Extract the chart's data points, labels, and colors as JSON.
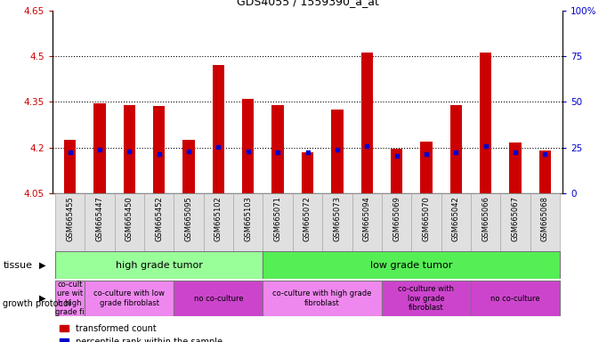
{
  "title": "GDS4055 / 1559390_a_at",
  "samples": [
    "GSM665455",
    "GSM665447",
    "GSM665450",
    "GSM665452",
    "GSM665095",
    "GSM665102",
    "GSM665103",
    "GSM665071",
    "GSM665072",
    "GSM665073",
    "GSM665094",
    "GSM665069",
    "GSM665070",
    "GSM665042",
    "GSM665066",
    "GSM665067",
    "GSM665068"
  ],
  "bar_values": [
    4.225,
    4.345,
    4.34,
    4.335,
    4.225,
    4.47,
    4.36,
    4.34,
    4.185,
    4.325,
    4.51,
    4.195,
    4.22,
    4.34,
    4.51,
    4.215,
    4.19
  ],
  "blue_values": [
    4.185,
    4.192,
    4.186,
    4.177,
    4.186,
    4.202,
    4.186,
    4.183,
    4.183,
    4.192,
    4.205,
    4.172,
    4.178,
    4.183,
    4.205,
    4.183,
    4.178
  ],
  "ymin": 4.05,
  "ymax": 4.65,
  "yticks": [
    4.05,
    4.2,
    4.35,
    4.5,
    4.65
  ],
  "ytick_labels": [
    "4.05",
    "4.2",
    "4.35",
    "4.5",
    "4.65"
  ],
  "right_yticks_pct": [
    0,
    25,
    50,
    75,
    100
  ],
  "right_ytick_labels": [
    "0",
    "25",
    "50",
    "75",
    "100%"
  ],
  "bar_color": "#cc0000",
  "blue_color": "#0000cc",
  "bar_bottom": 4.05,
  "tissue_groups": [
    {
      "label": "high grade tumor",
      "start": 0,
      "end": 6,
      "color": "#99ff99"
    },
    {
      "label": "low grade tumor",
      "start": 7,
      "end": 16,
      "color": "#55ee55"
    }
  ],
  "protocol_groups": [
    {
      "label": "co-cult\nure wit\nh high\ngrade fi",
      "start": 0,
      "end": 0,
      "color": "#ee88ee"
    },
    {
      "label": "co-culture with low\ngrade fibroblast",
      "start": 1,
      "end": 3,
      "color": "#ee88ee"
    },
    {
      "label": "no co-culture",
      "start": 4,
      "end": 6,
      "color": "#cc44cc"
    },
    {
      "label": "co-culture with high grade\nfibroblast",
      "start": 7,
      "end": 10,
      "color": "#ee88ee"
    },
    {
      "label": "co-culture with\nlow grade\nfibroblast",
      "start": 11,
      "end": 13,
      "color": "#cc44cc"
    },
    {
      "label": "no co-culture",
      "start": 14,
      "end": 16,
      "color": "#cc44cc"
    }
  ],
  "legend_red": "transformed count",
  "legend_blue": "percentile rank within the sample",
  "tissue_label": "tissue",
  "protocol_label": "growth protocol",
  "left_axis_color": "#cc0000",
  "right_axis_color": "#0000cc",
  "dotted_yticks": [
    4.2,
    4.35,
    4.5
  ],
  "bg_color": "#ffffff"
}
